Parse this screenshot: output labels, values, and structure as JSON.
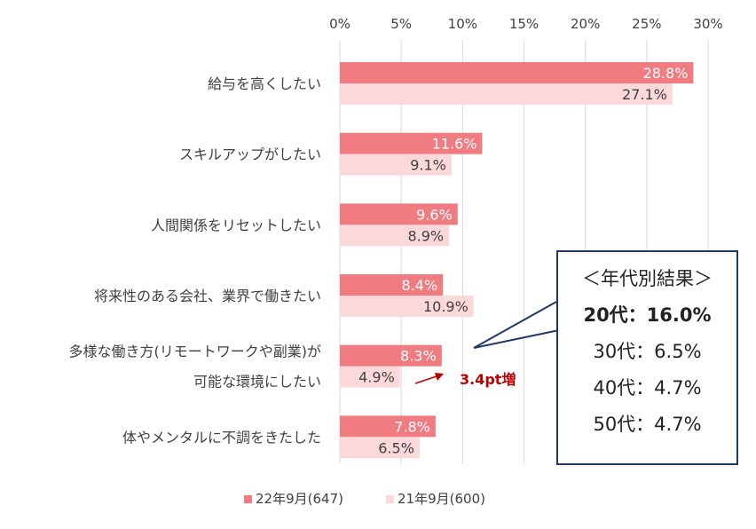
{
  "chart_data": {
    "type": "bar",
    "orientation": "horizontal",
    "categories": [
      [
        "給与を高くしたい"
      ],
      [
        "スキルアップがしたい"
      ],
      [
        "人間関係をリセットしたい"
      ],
      [
        "将来性のある会社、業界で働きたい"
      ],
      [
        "多様な働き方(リモートワークや副業)が",
        "可能な環境にしたい"
      ],
      [
        "体やメンタルに不調をきたした"
      ]
    ],
    "series": [
      {
        "name": "22年9月(647)",
        "values": [
          28.8,
          11.6,
          9.6,
          8.4,
          8.3,
          7.8
        ],
        "labels": [
          "28.8%",
          "11.6%",
          "9.6%",
          "8.4%",
          "8.3%",
          "7.8%"
        ],
        "color": "#f07b80",
        "label_color": "#ffffff"
      },
      {
        "name": "21年9月(600)",
        "values": [
          27.1,
          9.1,
          8.9,
          10.9,
          4.9,
          6.5
        ],
        "labels": [
          "27.1%",
          "9.1%",
          "8.9%",
          "10.9%",
          "4.9%",
          "6.5%"
        ],
        "color": "#fbd9db",
        "label_color": "#404040"
      }
    ],
    "x_ticks": [
      "0%",
      "5%",
      "10%",
      "15%",
      "20%",
      "25%",
      "30%"
    ],
    "xlim": [
      0,
      30
    ],
    "grid": true,
    "legend": "bottom"
  },
  "callout": {
    "title": "＜年代別結果＞",
    "rows": [
      "20代：16.0%",
      "30代：6.5%",
      "40代：4.7%",
      "50代：4.7%"
    ]
  },
  "annotation": {
    "text": "3.4pt増",
    "color": "#c00000"
  }
}
